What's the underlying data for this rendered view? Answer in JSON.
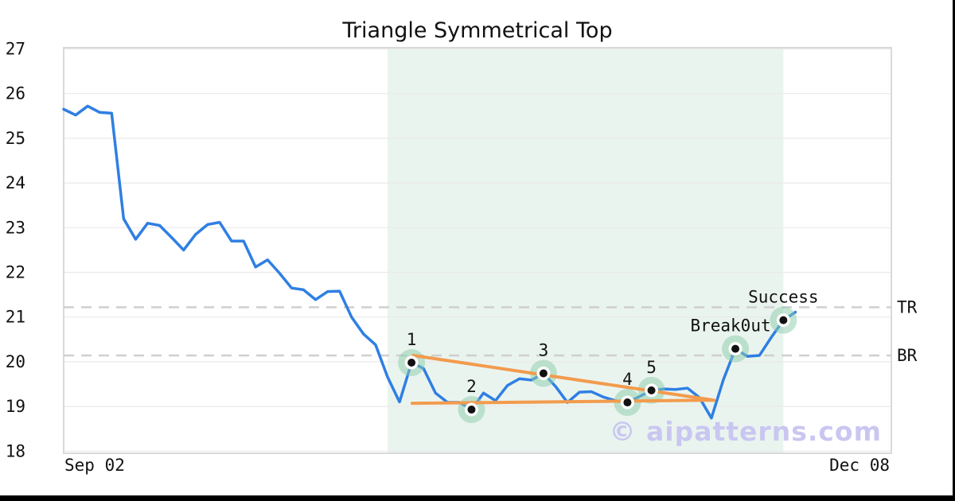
{
  "chart": {
    "title": "Triangle Symmetrical Top",
    "watermark": "© aipatterns.com"
  },
  "chart_data": {
    "type": "line",
    "title": "Triangle Symmetrical Top",
    "x_axis": {
      "tick_labels": [
        "Sep 02",
        "Dec 08"
      ],
      "tick_days": [
        0,
        69
      ],
      "total_days": 69
    },
    "y_axis": {
      "ticks": [
        27,
        26,
        25,
        24,
        23,
        22,
        21,
        20,
        19,
        18
      ],
      "range": [
        18,
        27
      ],
      "grid": true
    },
    "series": [
      {
        "name": "price",
        "color": "#2f7fe3",
        "values": [
          25.65,
          25.52,
          25.72,
          25.58,
          25.56,
          23.2,
          22.74,
          23.1,
          23.05,
          22.78,
          22.5,
          22.85,
          23.07,
          23.12,
          22.7,
          22.7,
          22.12,
          22.28,
          21.98,
          21.65,
          21.61,
          21.39,
          21.57,
          21.58,
          21.0,
          20.62,
          20.38,
          19.66,
          19.1,
          19.98,
          19.85,
          19.3,
          19.09,
          19.09,
          18.93,
          19.3,
          19.13,
          19.47,
          19.62,
          19.59,
          19.74,
          19.45,
          19.09,
          19.32,
          19.33,
          19.21,
          19.13,
          19.09,
          19.22,
          19.36,
          19.39,
          19.38,
          19.41,
          19.2,
          18.74,
          19.6,
          20.29,
          20.12,
          20.14,
          20.55,
          20.93,
          21.11
        ]
      }
    ],
    "markers": [
      {
        "day": 29,
        "value": 19.98,
        "label": "1"
      },
      {
        "day": 34,
        "value": 18.93,
        "label": "2"
      },
      {
        "day": 40,
        "value": 19.74,
        "label": "3"
      },
      {
        "day": 47,
        "value": 19.09,
        "label": "4"
      },
      {
        "day": 49,
        "value": 19.36,
        "label": "5"
      },
      {
        "day": 56,
        "value": 20.29,
        "label": "Break0ut",
        "label_dx": -6
      },
      {
        "day": 60,
        "value": 20.93,
        "label": "Success"
      }
    ],
    "trendlines": [
      {
        "name": "upper",
        "from_day": 29.15,
        "from_value": 20.14,
        "to_day": 54.2,
        "to_value": 19.14
      },
      {
        "name": "lower",
        "from_day": 29.05,
        "from_value": 19.07,
        "to_day": 54.2,
        "to_value": 19.14
      }
    ],
    "reference_lines": [
      {
        "label": "TR",
        "value": 21.22
      },
      {
        "label": "BR",
        "value": 20.14
      }
    ],
    "pattern_region": {
      "start_day": 27,
      "end_day": 60
    },
    "colors": {
      "price_line": "#2f7fe3",
      "trendline": "#f29b4d",
      "marker_glow": "rgba(138,203,170,0.5)",
      "marker_dot": "#111111",
      "marker_ring": "#ffffff",
      "reference_dash": "#cfcfcf",
      "grid": "#eaeaea",
      "plot_border": "#d9d9d9",
      "pattern_region_fill": "#eaf4ef",
      "text": "#111111",
      "watermark": "#c9c7f1"
    }
  }
}
